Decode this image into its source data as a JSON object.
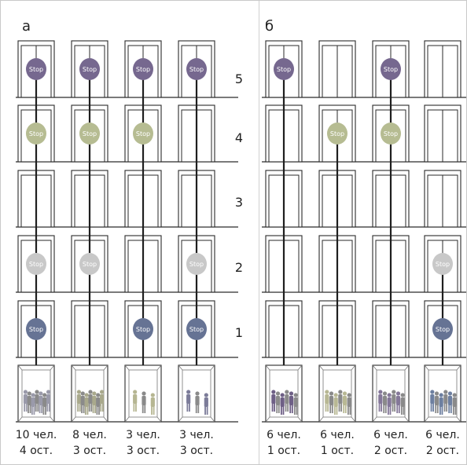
{
  "panels": [
    {
      "label": "а",
      "elevators": [
        {
          "stops": [
            1,
            2,
            4,
            5
          ],
          "people": 10,
          "caption1": "10 чел.",
          "caption2": "4 ост.",
          "group_color": "#9a9aaa"
        },
        {
          "stops": [
            2,
            4,
            5
          ],
          "people": 8,
          "caption1": "8 чел.",
          "caption2": "3 ост.",
          "group_color": "#a9a98c"
        },
        {
          "stops": [
            1,
            4,
            5
          ],
          "people": 3,
          "caption1": "3 чел.",
          "caption2": "3 ост.",
          "group_color": "#b6b692"
        },
        {
          "stops": [
            1,
            2,
            5
          ],
          "people": 3,
          "caption1": "3 чел.",
          "caption2": "3 ост.",
          "group_color": "#7c7c99"
        }
      ]
    },
    {
      "label": "б",
      "elevators": [
        {
          "stops": [
            5
          ],
          "people": 6,
          "caption1": "6 чел.",
          "caption2": "1 ост.",
          "group_color": "#6e5f86"
        },
        {
          "stops": [
            4
          ],
          "people": 6,
          "caption1": "6 чел.",
          "caption2": "1 ост.",
          "group_color": "#b8b894"
        },
        {
          "stops": [
            4,
            5
          ],
          "people": 6,
          "caption1": "6 чел.",
          "caption2": "2 ост.",
          "group_color": "#847799"
        },
        {
          "stops": [
            1,
            2
          ],
          "people": 6,
          "caption1": "6 чел.",
          "caption2": "2 ост.",
          "group_color": "#6d7fa0"
        }
      ]
    }
  ],
  "floor_labels": [
    "5",
    "4",
    "3",
    "2",
    "1"
  ],
  "stop_text": "Stop",
  "stop_colors": {
    "1": "#667394",
    "2": "#c8c8c8",
    "4": "#b6bc92",
    "5": "#76688f"
  },
  "line_color": "#2a2a2a"
}
